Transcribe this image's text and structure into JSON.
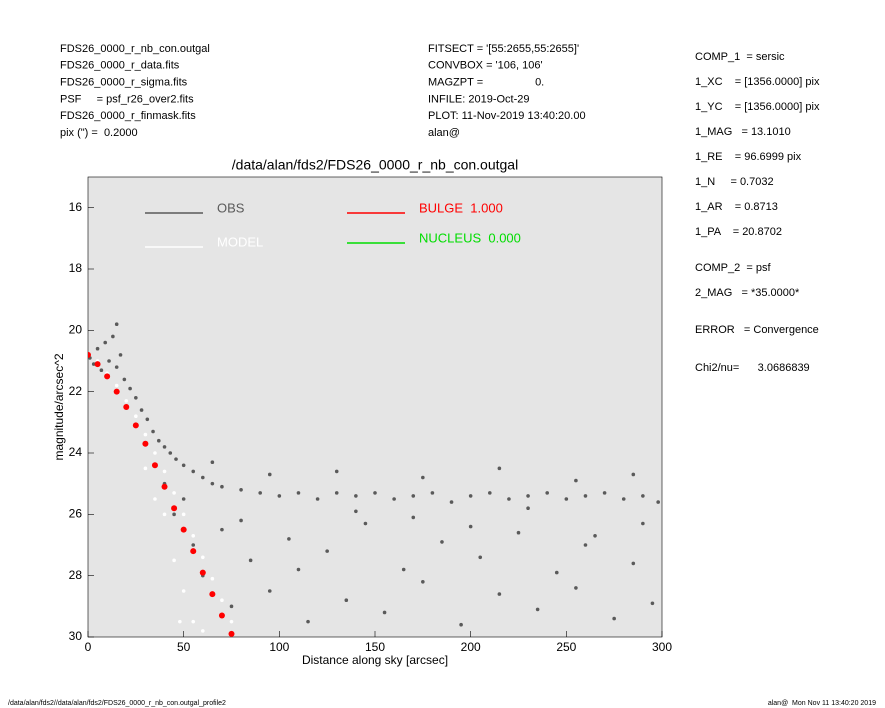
{
  "page": {
    "left": [
      "FDS26_0000_r_nb_con.outgal",
      "FDS26_0000_r_data.fits",
      "FDS26_0000_r_sigma.fits",
      "PSF     = psf_r26_over2.fits",
      "FDS26_0000_r_finmask.fits",
      "pix (\") =  0.2000"
    ],
    "middle": [
      "FITSECT = '[55:2655,55:2655]'",
      "CONVBOX = '106, 106'",
      "MAGZPT =                 0.",
      "INFILE: 2019-Oct-29",
      "PLOT: 11-Nov-2019 13:40:20.00",
      "alan@"
    ],
    "right": [
      "COMP_1  = sersic",
      "1_XC    = [1356.0000] pix",
      "1_YC    = [1356.0000] pix",
      "1_MAG   = 13.1010",
      "1_RE    = 96.6999 pix",
      "1_N     = 0.7032",
      "1_AR    = 0.8713",
      "1_PA    = 20.8702",
      "COMP_2  = psf",
      "2_MAG   = *35.0000*",
      "ERROR   = Convergence",
      "Chi2/nu=      3.0686839"
    ],
    "footer_left": "/data/alan/fds2//data/alan/fds2/FDS26_0000_r_nb_con.outgal_profile2",
    "footer_right": "alan@  Mon Nov 11 13:40:20 2019"
  },
  "chart_data": {
    "type": "scatter",
    "title": "/data/alan/fds2/FDS26_0000_r_nb_con.outgal",
    "xlabel": "Distance along sky [arcsec]",
    "ylabel": "magnitude/arcsec^2",
    "xlim": [
      0,
      300
    ],
    "ylim": [
      30,
      15
    ],
    "xticks": [
      0,
      50,
      100,
      150,
      200,
      250,
      300
    ],
    "yticks": [
      16,
      18,
      20,
      22,
      24,
      26,
      28,
      30
    ],
    "series": [
      {
        "name": "OBS",
        "color": "#5a5a5a",
        "x": [
          1,
          3,
          5,
          7,
          9,
          11,
          13,
          15,
          17,
          19,
          22,
          25,
          28,
          31,
          34,
          37,
          40,
          43,
          46,
          50,
          55,
          60,
          65,
          70,
          80,
          90,
          100,
          110,
          120,
          130,
          140,
          150,
          160,
          170,
          180,
          190,
          200,
          210,
          220,
          230,
          240,
          250,
          260,
          270,
          280,
          290,
          298,
          95,
          130,
          175,
          215,
          255,
          285,
          65,
          15,
          45,
          55,
          60,
          70,
          75,
          85,
          95,
          105,
          115,
          125,
          135,
          145,
          155,
          165,
          175,
          185,
          195,
          205,
          215,
          225,
          235,
          245,
          255,
          265,
          275,
          285,
          295,
          50,
          80,
          110,
          140,
          170,
          200,
          230,
          260,
          290,
          40
        ],
        "values": [
          20.9,
          21.1,
          20.6,
          21.3,
          20.4,
          21.0,
          20.2,
          21.2,
          20.8,
          21.6,
          21.9,
          22.2,
          22.6,
          22.9,
          23.3,
          23.6,
          23.8,
          24.0,
          24.2,
          24.4,
          24.6,
          24.8,
          25.0,
          25.1,
          25.2,
          25.3,
          25.4,
          25.3,
          25.5,
          25.3,
          25.4,
          25.3,
          25.5,
          25.4,
          25.3,
          25.6,
          25.4,
          25.3,
          25.5,
          25.4,
          25.3,
          25.5,
          25.4,
          25.3,
          25.5,
          25.4,
          25.6,
          24.7,
          24.6,
          24.8,
          24.5,
          24.9,
          24.7,
          24.3,
          19.8,
          26.0,
          27.0,
          28.0,
          26.5,
          29.0,
          27.5,
          28.5,
          26.8,
          29.5,
          27.2,
          28.8,
          26.3,
          29.2,
          27.8,
          28.2,
          26.9,
          29.6,
          27.4,
          28.6,
          26.6,
          29.1,
          27.9,
          28.4,
          26.7,
          29.4,
          27.6,
          28.9,
          25.5,
          26.2,
          27.8,
          25.9,
          26.1,
          26.4,
          25.8,
          27.0,
          26.3,
          25.0
        ]
      },
      {
        "name": "MODEL",
        "color": "#ffffff",
        "x": [
          0,
          5,
          10,
          15,
          20,
          25,
          30,
          35,
          40,
          45,
          50,
          55,
          60,
          65,
          70,
          75,
          40,
          45,
          50,
          55,
          60,
          35,
          30,
          48
        ],
        "values": [
          20.8,
          21.0,
          21.4,
          21.8,
          22.3,
          22.8,
          23.4,
          24.0,
          24.6,
          25.3,
          26.0,
          26.7,
          27.4,
          28.1,
          28.8,
          29.5,
          26.0,
          27.5,
          28.5,
          29.5,
          29.8,
          25.5,
          24.5,
          29.5
        ]
      },
      {
        "name": "BULGE  1.000",
        "color": "#ff0000",
        "x": [
          0,
          5,
          10,
          15,
          20,
          25,
          30,
          35,
          40,
          45,
          50,
          55,
          60,
          65,
          70,
          75
        ],
        "values": [
          20.8,
          21.1,
          21.5,
          22.0,
          22.5,
          23.1,
          23.7,
          24.4,
          25.1,
          25.8,
          26.5,
          27.2,
          27.9,
          28.6,
          29.3,
          29.9
        ]
      },
      {
        "name": "NUCLEUS  0.000",
        "color": "#00dd00",
        "x": [],
        "values": []
      }
    ]
  }
}
